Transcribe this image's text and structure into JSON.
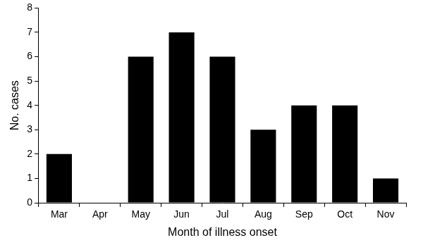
{
  "chart_data": {
    "type": "bar",
    "x_label": "Month of illness onset",
    "y_label": "No. cases",
    "categories": [
      "Mar",
      "Apr",
      "May",
      "Jun",
      "Jul",
      "Aug",
      "Sep",
      "Oct",
      "Nov"
    ],
    "values": [
      2,
      0,
      6,
      7,
      6,
      3,
      4,
      4,
      1
    ],
    "color": "#000000",
    "ylim": [
      0,
      8
    ],
    "yticks": [
      0,
      1,
      2,
      3,
      4,
      5,
      6,
      7,
      8
    ],
    "grid": false
  }
}
